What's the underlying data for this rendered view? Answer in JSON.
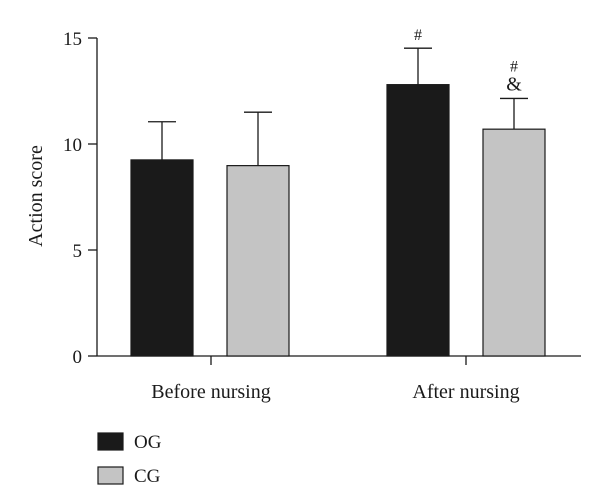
{
  "chart_data": {
    "type": "bar",
    "xlabel": "",
    "ylabel": "Action score",
    "ylim": [
      0,
      15
    ],
    "yticks": [
      0,
      5,
      10,
      15
    ],
    "categories": [
      "Before nursing",
      "After nursing"
    ],
    "series": [
      {
        "name": "OG",
        "color": "#1a1a1a",
        "values": [
          9.25,
          12.8
        ],
        "errors": [
          1.8,
          1.72
        ]
      },
      {
        "name": "CG",
        "color": "#c4c4c4",
        "values": [
          8.98,
          10.7
        ],
        "errors": [
          2.52,
          1.45
        ]
      }
    ],
    "annotations": [
      {
        "category": 1,
        "series": 0,
        "lines": [
          "#"
        ]
      },
      {
        "category": 1,
        "series": 1,
        "lines": [
          "#",
          "&"
        ]
      }
    ],
    "legend_position": "bottom-left",
    "grid": false
  }
}
